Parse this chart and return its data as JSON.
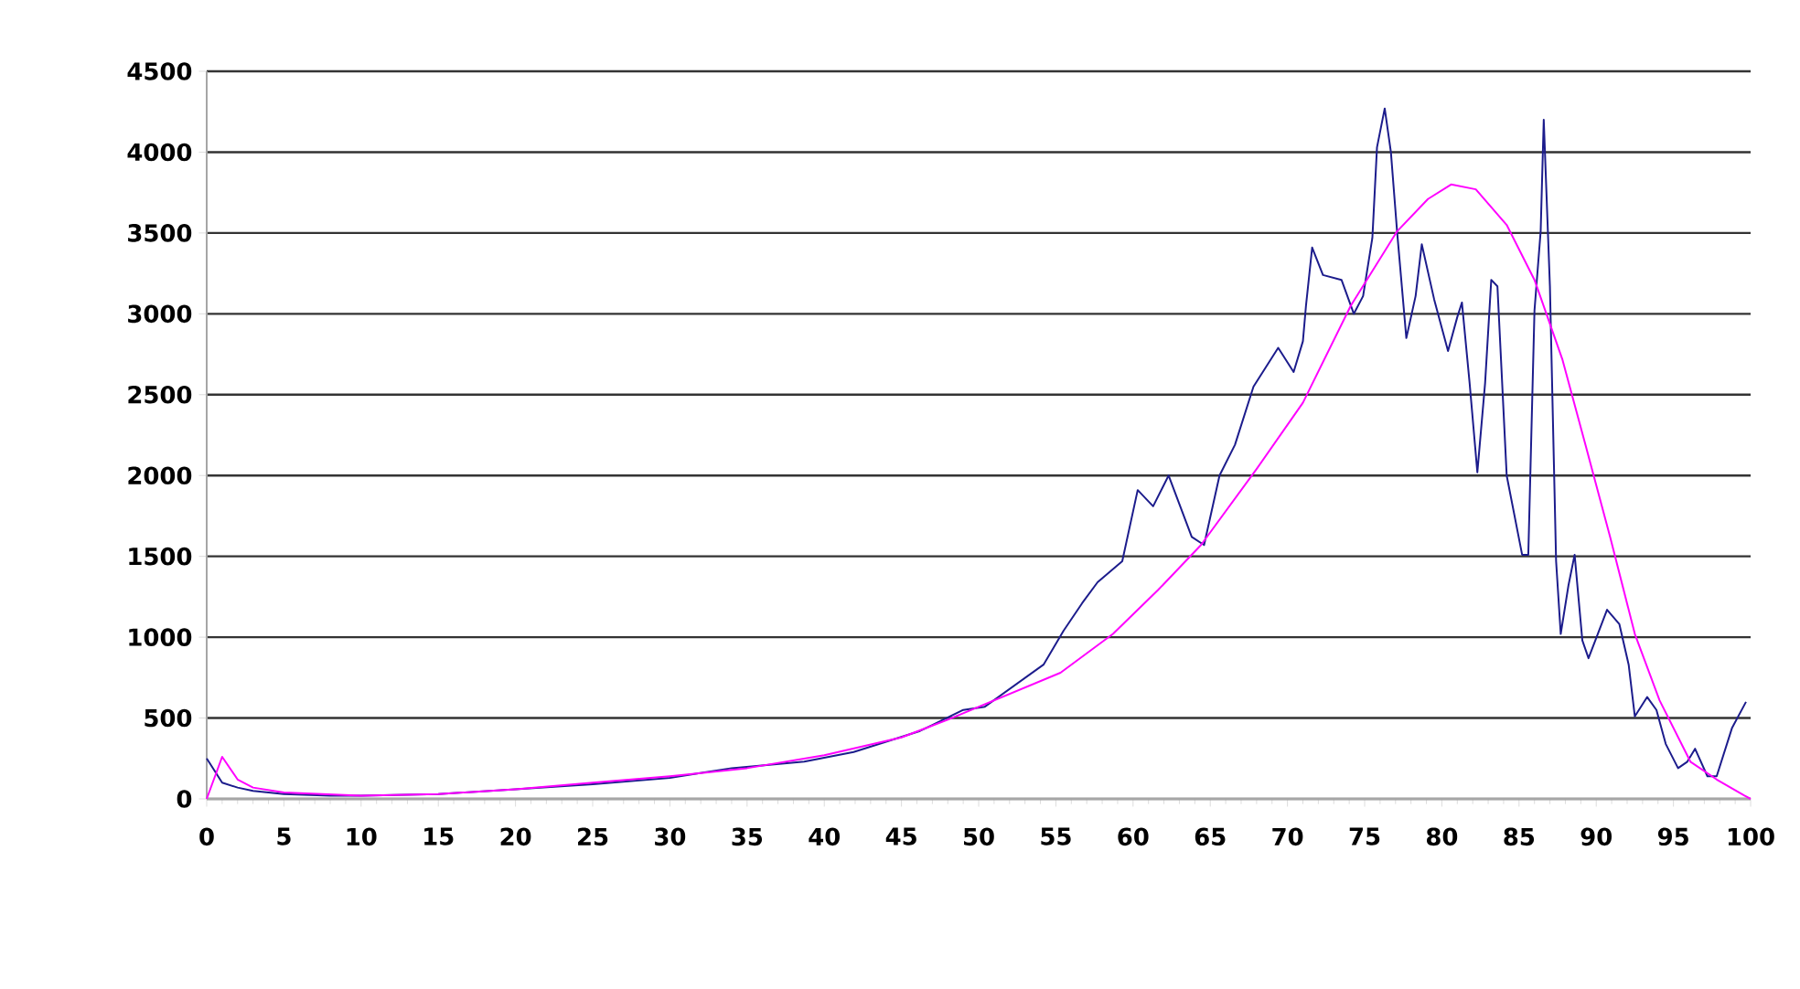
{
  "chart_data": {
    "type": "line",
    "xlim": [
      0,
      100
    ],
    "ylim": [
      0,
      4500
    ],
    "xticks": [
      0,
      5,
      10,
      15,
      20,
      25,
      30,
      35,
      40,
      45,
      50,
      55,
      60,
      65,
      70,
      75,
      80,
      85,
      90,
      95,
      100
    ],
    "yticks": [
      0,
      500,
      1000,
      1500,
      2000,
      2500,
      3000,
      3500,
      4000,
      4500
    ],
    "grid": "y",
    "marker": "none",
    "line_style": "solid",
    "series": [
      {
        "color": "#1c1c8c",
        "x": [
          0,
          1,
          2,
          3,
          5,
          8,
          10,
          15,
          20,
          25,
          30,
          34.0,
          38.7,
          41.9,
          46.2,
          49.0,
          50.4,
          54.2,
          55.5,
          56.7,
          57.7,
          59.3,
          60.3,
          61.3,
          62.3,
          63.8,
          64.6,
          65.6,
          66.6,
          67.8,
          69.4,
          70.4,
          71.0,
          71.2,
          71.6,
          72.3,
          73.5,
          74.3,
          74.9,
          75.5,
          75.8,
          76.3,
          76.7,
          77.1,
          77.7,
          78.3,
          78.7,
          79.5,
          80.4,
          81.0,
          81.3,
          81.8,
          82.3,
          82.8,
          83.2,
          83.6,
          84.2,
          85.2,
          85.6,
          86.0,
          86.4,
          86.6,
          87.0,
          87.4,
          87.7,
          88.2,
          88.6,
          89.1,
          89.5,
          90.7,
          91.5,
          92.1,
          92.5,
          93.3,
          93.9,
          94.5,
          95.3,
          95.9,
          96.4,
          97.2,
          97.8,
          98.8,
          99.7
        ],
        "values": [
          250,
          100,
          70,
          50,
          30,
          20,
          20,
          30,
          60,
          90,
          130,
          190,
          230,
          290,
          420,
          550,
          570,
          830,
          1040,
          1210,
          1340,
          1470,
          1910,
          1810,
          2000,
          1620,
          1570,
          2000,
          2190,
          2550,
          2790,
          2640,
          2830,
          3050,
          3410,
          3240,
          3210,
          3000,
          3110,
          3470,
          4030,
          4270,
          4000,
          3510,
          2850,
          3110,
          3430,
          3090,
          2770,
          2980,
          3070,
          2570,
          2020,
          2570,
          3210,
          3170,
          2000,
          1510,
          1510,
          3020,
          3510,
          4200,
          3170,
          1470,
          1020,
          1320,
          1510,
          980,
          870,
          1170,
          1080,
          830,
          510,
          630,
          550,
          340,
          190,
          230,
          310,
          140,
          140,
          440,
          600
        ]
      },
      {
        "color": "#ff00ff",
        "x": [
          0,
          1,
          2,
          3,
          5,
          10,
          15,
          20,
          25,
          30,
          35,
          40,
          45,
          48,
          55.3,
          58.7,
          61.6,
          64.4,
          68.0,
          71.0,
          74.1,
          77.1,
          79.1,
          80.6,
          82.2,
          84.2,
          86.0,
          87.8,
          89.3,
          90.9,
          92.5,
          94.1,
          96.1,
          97.8,
          99.6,
          100
        ],
        "values": [
          0,
          260,
          120,
          70,
          40,
          20,
          30,
          60,
          100,
          140,
          190,
          270,
          380,
          490,
          780,
          1020,
          1290,
          1570,
          2040,
          2450,
          3050,
          3510,
          3710,
          3800,
          3770,
          3550,
          3210,
          2720,
          2190,
          1620,
          1020,
          610,
          230,
          120,
          20,
          0
        ]
      }
    ]
  }
}
